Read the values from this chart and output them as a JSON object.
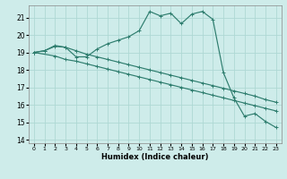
{
  "xlabel": "Humidex (Indice chaleur)",
  "background_color": "#ceecea",
  "grid_color": "#aed8d4",
  "line_color": "#2e7d6e",
  "xlim": [
    -0.5,
    23.5
  ],
  "ylim": [
    13.8,
    21.7
  ],
  "yticks": [
    14,
    15,
    16,
    17,
    18,
    19,
    20,
    21
  ],
  "xticks": [
    0,
    1,
    2,
    3,
    4,
    5,
    6,
    7,
    8,
    9,
    10,
    11,
    12,
    13,
    14,
    15,
    16,
    17,
    18,
    19,
    20,
    21,
    22,
    23
  ],
  "line1_x": [
    0,
    1,
    2,
    3,
    4,
    5,
    6,
    7,
    8,
    9,
    10,
    11,
    12,
    13,
    14,
    15,
    16,
    17,
    18,
    19,
    20,
    21,
    22,
    23
  ],
  "line1_y": [
    19.0,
    19.1,
    19.4,
    19.3,
    19.1,
    18.9,
    18.75,
    18.6,
    18.45,
    18.3,
    18.15,
    18.0,
    17.85,
    17.7,
    17.55,
    17.4,
    17.25,
    17.1,
    16.95,
    16.8,
    16.65,
    16.5,
    16.3,
    16.15
  ],
  "line2_x": [
    0,
    2,
    3,
    4,
    5,
    6,
    7,
    8,
    9,
    10,
    11,
    12,
    13,
    14,
    15,
    16,
    17,
    18,
    19,
    20,
    21,
    22,
    23
  ],
  "line2_y": [
    19.0,
    18.8,
    18.6,
    18.5,
    18.35,
    18.2,
    18.05,
    17.9,
    17.75,
    17.6,
    17.45,
    17.3,
    17.15,
    17.0,
    16.85,
    16.7,
    16.55,
    16.4,
    16.25,
    16.1,
    15.95,
    15.8,
    15.65
  ],
  "line3_x": [
    0,
    1,
    2,
    3,
    4,
    5,
    6,
    7,
    8,
    9,
    10,
    11,
    12,
    13,
    14,
    15,
    16,
    17,
    18,
    19,
    20,
    21,
    22,
    23
  ],
  "line3_y": [
    19.0,
    19.1,
    19.35,
    19.3,
    18.75,
    18.75,
    19.2,
    19.5,
    19.7,
    19.9,
    20.25,
    21.35,
    21.1,
    21.25,
    20.65,
    21.2,
    21.35,
    20.9,
    17.85,
    16.4,
    15.35,
    15.5,
    15.05,
    14.7
  ]
}
